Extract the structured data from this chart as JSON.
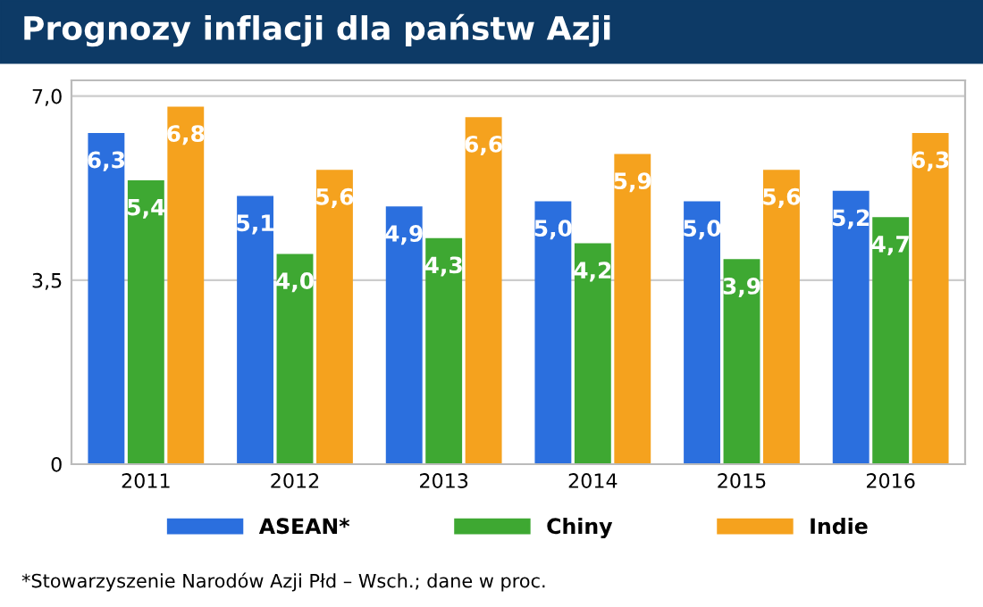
{
  "chart_data": {
    "type": "bar",
    "title": "Prognozy inflacji dla państw Azji",
    "categories": [
      "2011",
      "2012",
      "2013",
      "2014",
      "2015",
      "2016"
    ],
    "series": [
      {
        "name": "ASEAN*",
        "color": "#2b6fde",
        "values": [
          6.3,
          5.1,
          4.9,
          5.0,
          5.0,
          5.2
        ],
        "value_labels": [
          "6,3",
          "5,1",
          "4,9",
          "5,0",
          "5,0",
          "5,2"
        ]
      },
      {
        "name": "Chiny",
        "color": "#3ea832",
        "values": [
          5.4,
          4.0,
          4.3,
          4.2,
          3.9,
          4.7
        ],
        "value_labels": [
          "5,4",
          "4,0",
          "4,3",
          "4,2",
          "3,9",
          "4,7"
        ]
      },
      {
        "name": "Indie",
        "color": "#f5a21e",
        "values": [
          6.8,
          5.6,
          6.6,
          5.9,
          5.6,
          6.3
        ],
        "value_labels": [
          "6,8",
          "5,6",
          "6,6",
          "5,9",
          "5,6",
          "6,3"
        ]
      }
    ],
    "ylim": [
      0,
      7.3
    ],
    "yticks": [
      0,
      {
        "value": 3.5,
        "label": "3,5"
      },
      {
        "value": 7.0,
        "label": "7,0"
      }
    ],
    "grid": "y",
    "legend": "bottom",
    "annotations": [
      "*Stowarzyszenie Narodów Azji Płd – Wsch.; dane w proc."
    ]
  }
}
